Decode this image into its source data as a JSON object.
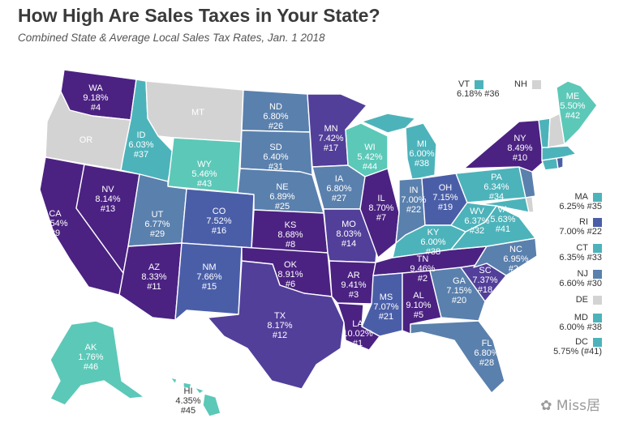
{
  "title": "How High Are Sales Taxes in Your State?",
  "subtitle": "Combined State & Average Local Sales Tax Rates, Jan. 1 2018",
  "colors": {
    "none": "#d3d3d3",
    "teal": "#5cc8b8",
    "teal2": "#4db3ba",
    "steel": "#5a80ad",
    "blue": "#4a5ea8",
    "indigo": "#523f9a",
    "purple": "#4b2282"
  },
  "states": {
    "WA": {
      "abbr": "WA",
      "rate": "9.18%",
      "rank": "#4"
    },
    "OR": {
      "abbr": "OR",
      "rate": "",
      "rank": ""
    },
    "CA": {
      "abbr": "CA",
      "rate": "8.54%",
      "rank": "#9"
    },
    "NV": {
      "abbr": "NV",
      "rate": "8.14%",
      "rank": "#13"
    },
    "ID": {
      "abbr": "ID",
      "rate": "6.03%",
      "rank": "#37"
    },
    "MT": {
      "abbr": "MT",
      "rate": "",
      "rank": ""
    },
    "WY": {
      "abbr": "WY",
      "rate": "5.46%",
      "rank": "#43"
    },
    "UT": {
      "abbr": "UT",
      "rate": "6.77%",
      "rank": "#29"
    },
    "AZ": {
      "abbr": "AZ",
      "rate": "8.33%",
      "rank": "#11"
    },
    "CO": {
      "abbr": "CO",
      "rate": "7.52%",
      "rank": "#16"
    },
    "NM": {
      "abbr": "NM",
      "rate": "7.66%",
      "rank": "#15"
    },
    "ND": {
      "abbr": "ND",
      "rate": "6.80%",
      "rank": "#26"
    },
    "SD": {
      "abbr": "SD",
      "rate": "6.40%",
      "rank": "#31"
    },
    "NE": {
      "abbr": "NE",
      "rate": "6.89%",
      "rank": "#25"
    },
    "KS": {
      "abbr": "KS",
      "rate": "8.68%",
      "rank": "#8"
    },
    "OK": {
      "abbr": "OK",
      "rate": "8.91%",
      "rank": "#6"
    },
    "TX": {
      "abbr": "TX",
      "rate": "8.17%",
      "rank": "#12"
    },
    "MN": {
      "abbr": "MN",
      "rate": "7.42%",
      "rank": "#17"
    },
    "IA": {
      "abbr": "IA",
      "rate": "6.80%",
      "rank": "#27"
    },
    "MO": {
      "abbr": "MO",
      "rate": "8.03%",
      "rank": "#14"
    },
    "AR": {
      "abbr": "AR",
      "rate": "9.41%",
      "rank": "#3"
    },
    "LA": {
      "abbr": "LA",
      "rate": "10.02%",
      "rank": "#1"
    },
    "WI": {
      "abbr": "WI",
      "rate": "5.42%",
      "rank": "#44"
    },
    "IL": {
      "abbr": "IL",
      "rate": "8.70%",
      "rank": "#7"
    },
    "MI": {
      "abbr": "MI",
      "rate": "6.00%",
      "rank": "#38"
    },
    "IN": {
      "abbr": "IN",
      "rate": "7.00%",
      "rank": "#22"
    },
    "OH": {
      "abbr": "OH",
      "rate": "7.15%",
      "rank": "#19"
    },
    "KY": {
      "abbr": "KY",
      "rate": "6.00%",
      "rank": "#38"
    },
    "TN": {
      "abbr": "TN",
      "rate": "9.46%",
      "rank": "#2"
    },
    "MS": {
      "abbr": "MS",
      "rate": "7.07%",
      "rank": "#21"
    },
    "AL": {
      "abbr": "AL",
      "rate": "9.10%",
      "rank": "#5"
    },
    "GA": {
      "abbr": "GA",
      "rate": "7.15%",
      "rank": "#20"
    },
    "FL": {
      "abbr": "FL",
      "rate": "6.80%",
      "rank": "#28"
    },
    "SC": {
      "abbr": "SC",
      "rate": "7.37%",
      "rank": "#18"
    },
    "NC": {
      "abbr": "NC",
      "rate": "6.95%",
      "rank": "#24"
    },
    "VA": {
      "abbr": "VA",
      "rate": "5.63%",
      "rank": "#41"
    },
    "WV": {
      "abbr": "WV",
      "rate": "6.37%",
      "rank": "#32"
    },
    "PA": {
      "abbr": "PA",
      "rate": "6.34%",
      "rank": "#34"
    },
    "NY": {
      "abbr": "NY",
      "rate": "8.49%",
      "rank": "#10"
    },
    "ME": {
      "abbr": "ME",
      "rate": "5.50%",
      "rank": "#42"
    },
    "AK": {
      "abbr": "AK",
      "rate": "1.76%",
      "rank": "#46"
    },
    "HI": {
      "abbr": "HI",
      "rate": "4.35%",
      "rank": "#45"
    }
  },
  "legend": {
    "VT": {
      "abbr": "VT",
      "value": "6.18% #36"
    },
    "NH": {
      "abbr": "NH",
      "value": ""
    },
    "MA": {
      "abbr": "MA",
      "value": "6.25% #35"
    },
    "RI": {
      "abbr": "RI",
      "value": "7.00% #22"
    },
    "CT": {
      "abbr": "CT",
      "value": "6.35% #33"
    },
    "NJ": {
      "abbr": "NJ",
      "value": "6.60% #30"
    },
    "DE": {
      "abbr": "DE",
      "value": ""
    },
    "MD": {
      "abbr": "MD",
      "value": "6.00% #38"
    },
    "DC": {
      "abbr": "DC",
      "value": "5.75% (#41)"
    }
  },
  "watermark": "Miss居"
}
